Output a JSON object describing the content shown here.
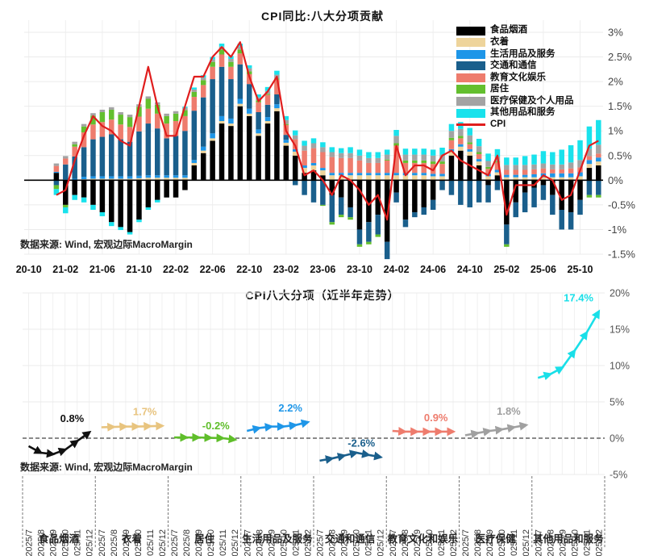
{
  "accent_colors": {
    "cpi_line": "#e01d1d",
    "grid": "#ebebeb",
    "zero_line": "#000000",
    "axis_text": "#444444"
  },
  "chart_data": [
    {
      "type": "bar",
      "subtype": "stacked-bar-with-line",
      "title": "CPI同比:八大分项贡献",
      "source": "数据来源: Wind, 宏观边际MacroMargin",
      "ylim": [
        -1.5,
        3
      ],
      "y_tick_values": [
        3,
        2.5,
        2,
        1.5,
        1,
        0.5,
        0,
        -0.5,
        -1,
        -1.5
      ],
      "y_tick_labels": [
        "3%",
        "2.5%",
        "2%",
        "1.5%",
        "1%",
        "0.5%",
        "0%",
        "-0.5%",
        "-1%",
        "-1.5%"
      ],
      "x_tick_labels": [
        "20-10",
        "21-02",
        "21-06",
        "21-10",
        "22-02",
        "22-06",
        "22-10",
        "23-02",
        "23-06",
        "23-10",
        "24-02",
        "24-06",
        "24-10",
        "25-02",
        "25-06",
        "25-10"
      ],
      "x_tick_month_offsets": [
        -3,
        1,
        5,
        9,
        13,
        17,
        21,
        25,
        29,
        33,
        37,
        41,
        45,
        49,
        53,
        57
      ],
      "months": [
        "21-01",
        "21-02",
        "21-03",
        "21-04",
        "21-05",
        "21-06",
        "21-07",
        "21-08",
        "21-09",
        "21-10",
        "21-11",
        "21-12",
        "22-01",
        "22-02",
        "22-03",
        "22-04",
        "22-05",
        "22-06",
        "22-07",
        "22-08",
        "22-09",
        "22-10",
        "22-11",
        "22-12",
        "23-01",
        "23-02",
        "23-03",
        "23-04",
        "23-05",
        "23-06",
        "23-07",
        "23-08",
        "23-09",
        "23-10",
        "23-11",
        "23-12",
        "24-01",
        "24-02",
        "24-03",
        "24-04",
        "24-05",
        "24-06",
        "24-07",
        "24-08",
        "24-09",
        "24-10",
        "24-11",
        "24-12",
        "25-01",
        "25-02",
        "25-03",
        "25-04",
        "25-05",
        "25-06",
        "25-07",
        "25-08",
        "25-09",
        "25-10",
        "25-11",
        "25-12"
      ],
      "series": [
        {
          "name": "食品烟酒",
          "color": "#000000",
          "values": [
            0.15,
            -0.5,
            -0.3,
            -0.35,
            -0.5,
            -0.65,
            -0.85,
            -0.95,
            -1.05,
            -0.8,
            -0.55,
            -0.4,
            -0.35,
            -0.35,
            -0.2,
            0.3,
            0.55,
            0.8,
            1.15,
            1.1,
            1.5,
            1.3,
            0.9,
            1.15,
            1.4,
            0.7,
            0.5,
            0.15,
            0.2,
            0.1,
            -0.3,
            -0.35,
            -0.55,
            -1.0,
            -0.85,
            -0.7,
            -1.25,
            -0.25,
            -0.8,
            -0.65,
            -0.55,
            -0.4,
            0.0,
            0.5,
            0.6,
            0.5,
            0.3,
            -0.1,
            0.1,
            -0.9,
            -0.45,
            -0.25,
            -0.15,
            -0.1,
            -0.3,
            -0.6,
            -0.65,
            -0.4,
            0.25,
            0.3
          ]
        },
        {
          "name": "衣着",
          "color": "#eed49b",
          "values": [
            0,
            0,
            0,
            0.02,
            0.03,
            0.03,
            0.03,
            0.03,
            0.03,
            0.04,
            0.05,
            0.05,
            0.05,
            0.05,
            0.05,
            0.05,
            0.05,
            0.05,
            0.05,
            0.05,
            0.05,
            0.05,
            0.05,
            0.05,
            0.06,
            0.06,
            0.08,
            0.1,
            0.1,
            0.1,
            0.1,
            0.1,
            0.1,
            0.1,
            0.1,
            0.1,
            0.1,
            0.1,
            0.1,
            0.1,
            0.1,
            0.08,
            0.08,
            0.08,
            0.08,
            0.08,
            0.08,
            0.08,
            0.06,
            0.06,
            0.06,
            0.06,
            0.06,
            0.06,
            0.06,
            0.06,
            0.06,
            0.08,
            0.08,
            0.08
          ]
        },
        {
          "name": "生活用品及服务",
          "color": "#1e96e8",
          "values": [
            0.02,
            0.02,
            0.03,
            0.05,
            0.05,
            0.05,
            0.05,
            0.05,
            0.05,
            0.05,
            0.05,
            0.05,
            0.05,
            0.05,
            0.05,
            0.06,
            0.08,
            0.1,
            0.1,
            0.1,
            0.1,
            0.1,
            0.08,
            0.08,
            0.08,
            0.06,
            0.05,
            0.05,
            0.05,
            0.05,
            0.05,
            0.05,
            0.05,
            0.05,
            0.05,
            0.05,
            0.05,
            0.05,
            0.05,
            0.05,
            0.05,
            0.05,
            0.05,
            0.05,
            0.05,
            0.05,
            0.05,
            0.05,
            0.05,
            0.05,
            0.05,
            0.05,
            0.06,
            0.08,
            0.08,
            0.08,
            0.08,
            0.08,
            0.08,
            0.08
          ]
        },
        {
          "name": "交通和通信",
          "color": "#1a5f8c",
          "values": [
            -0.1,
            0.3,
            0.45,
            0.6,
            0.75,
            0.8,
            0.85,
            0.75,
            0.7,
            0.9,
            1.05,
            0.95,
            0.75,
            0.8,
            0.9,
            1.0,
            1.0,
            1.1,
            1.0,
            0.8,
            0.7,
            0.5,
            0.35,
            0.25,
            0.2,
            0.1,
            -0.1,
            -0.3,
            -0.45,
            -0.5,
            -0.55,
            -0.35,
            -0.2,
            -0.3,
            -0.4,
            -0.4,
            -0.35,
            -0.2,
            -0.15,
            -0.1,
            -0.15,
            -0.2,
            -0.2,
            -0.3,
            -0.5,
            -0.55,
            -0.45,
            -0.35,
            -0.2,
            -0.4,
            -0.3,
            -0.4,
            -0.4,
            -0.3,
            -0.4,
            -0.4,
            -0.35,
            -0.3,
            -0.3,
            -0.3
          ]
        },
        {
          "name": "教育文化娱乐",
          "color": "#ee7c6d",
          "values": [
            0.12,
            0.12,
            0.2,
            0.3,
            0.3,
            0.3,
            0.3,
            0.3,
            0.3,
            0.3,
            0.3,
            0.3,
            0.3,
            0.3,
            0.3,
            0.28,
            0.25,
            0.25,
            0.25,
            0.25,
            0.22,
            0.2,
            0.2,
            0.2,
            0.3,
            0.2,
            0.2,
            0.3,
            0.3,
            0.32,
            0.32,
            0.3,
            0.3,
            0.25,
            0.2,
            0.2,
            0.25,
            0.55,
            0.2,
            0.2,
            0.2,
            0.2,
            0.2,
            0.18,
            0.12,
            0.1,
            0.1,
            0.1,
            0.15,
            0.1,
            0.1,
            0.1,
            0.1,
            0.1,
            0.08,
            0.08,
            0.1,
            0.1,
            0.08,
            0.08
          ]
        },
        {
          "name": "居住",
          "color": "#63bf2e",
          "values": [
            -0.08,
            -0.05,
            0.05,
            0.12,
            0.18,
            0.2,
            0.2,
            0.2,
            0.2,
            0.2,
            0.2,
            0.18,
            0.15,
            0.15,
            0.12,
            0.1,
            0.1,
            0.1,
            0.1,
            0.1,
            0.08,
            0.06,
            0.04,
            0.02,
            0.02,
            0.02,
            0,
            0,
            0,
            -0.02,
            -0.05,
            -0.05,
            -0.05,
            -0.05,
            -0.05,
            -0.05,
            0.02,
            0.05,
            0.05,
            0.05,
            0.05,
            0.05,
            0.05,
            0.05,
            0.05,
            0.04,
            0.04,
            0.04,
            0.02,
            -0.05,
            0,
            0,
            0,
            0,
            0,
            0,
            0,
            0,
            -0.05,
            -0.05
          ]
        },
        {
          "name": "医疗保健及个人用品",
          "color": "#a3a3a3",
          "values": [
            0.05,
            0.05,
            0.05,
            0.05,
            0.05,
            0.05,
            0.05,
            0.05,
            0.05,
            0.05,
            0.05,
            0.05,
            0.05,
            0.05,
            0.05,
            0.05,
            0.05,
            0.05,
            0.06,
            0.06,
            0.06,
            0.06,
            0.06,
            0.06,
            0.08,
            0.08,
            0.08,
            0.1,
            0.1,
            0.1,
            0.1,
            0.1,
            0.1,
            0.1,
            0.1,
            0.1,
            0.1,
            0.15,
            0.12,
            0.12,
            0.12,
            0.12,
            0.14,
            0.14,
            0.14,
            0.14,
            0.12,
            0.12,
            0.1,
            0.1,
            0.1,
            0.1,
            0.1,
            0.1,
            0.1,
            0.1,
            0.12,
            0.15,
            0.15,
            0.18
          ]
        },
        {
          "name": "其他用品和服务",
          "color": "#19e2ec",
          "values": [
            -0.12,
            -0.12,
            -0.1,
            -0.1,
            -0.1,
            -0.08,
            -0.08,
            -0.06,
            -0.05,
            -0.05,
            -0.05,
            -0.05,
            0,
            0,
            0.02,
            0.04,
            0.05,
            0.05,
            0.06,
            0.06,
            0.06,
            0.06,
            0.06,
            0.08,
            0.08,
            0.08,
            0.1,
            0.1,
            0.1,
            0.1,
            0.1,
            0.1,
            0.12,
            0.12,
            0.12,
            0.12,
            0.1,
            0.12,
            0.12,
            0.12,
            0.12,
            0.12,
            0.14,
            0.14,
            0.14,
            0.15,
            0.15,
            0.15,
            0.15,
            0.15,
            0.15,
            0.18,
            0.2,
            0.25,
            0.25,
            0.3,
            0.35,
            0.4,
            0.45,
            0.5
          ]
        }
      ],
      "line": {
        "name": "CPI",
        "color": "#e01d1d",
        "values": [
          -0.3,
          -0.2,
          0.4,
          0.9,
          1.3,
          1.1,
          1.0,
          0.8,
          0.7,
          1.5,
          2.3,
          1.5,
          0.9,
          0.9,
          1.5,
          2.1,
          2.1,
          2.5,
          2.7,
          2.5,
          2.8,
          2.1,
          1.6,
          1.8,
          2.1,
          1.0,
          0.7,
          0.1,
          0.2,
          0.0,
          -0.3,
          0.1,
          0.0,
          -0.2,
          -0.5,
          -0.3,
          -0.8,
          0.7,
          0.1,
          0.3,
          0.3,
          0.2,
          0.5,
          0.6,
          0.4,
          0.3,
          0.2,
          0.1,
          0.5,
          -0.7,
          -0.1,
          -0.1,
          -0.1,
          0.1,
          0.0,
          -0.4,
          -0.3,
          0.2,
          0.7,
          0.8
        ]
      },
      "legend_position": "top-right",
      "grid": true
    },
    {
      "type": "line",
      "subtype": "small-multiples-arrow-lines",
      "title": "CPI八大分项（近半年走势）",
      "source": "数据来源: Wind, 宏观边际MacroMargin",
      "ylim": [
        -5,
        20
      ],
      "y_tick_values": [
        20,
        15,
        10,
        5,
        0,
        -5
      ],
      "y_tick_labels": [
        "20%",
        "15%",
        "10%",
        "5%",
        "0%",
        "-5%"
      ],
      "x_labels": [
        "2025/7",
        "2025/8",
        "2025/9",
        "2025/10",
        "2025/11",
        "2025/12"
      ],
      "panels": [
        {
          "name": "食品烟酒",
          "color": "#111111",
          "label_color": "#111111",
          "end_label": "0.8%",
          "values": [
            -1.1,
            -2.0,
            -2.2,
            -1.6,
            -0.4,
            0.8
          ]
        },
        {
          "name": "衣着",
          "color": "#e8c47f",
          "label_color": "#e8c47f",
          "end_label": "1.7%",
          "values": [
            1.5,
            1.55,
            1.6,
            1.6,
            1.65,
            1.7
          ]
        },
        {
          "name": "居住",
          "color": "#5fbe2a",
          "label_color": "#5fbe2a",
          "end_label": "-0.2%",
          "values": [
            0.1,
            0.1,
            0.1,
            0.05,
            0.0,
            -0.2
          ]
        },
        {
          "name": "生活用品及服务",
          "color": "#1e96e8",
          "label_color": "#1e96e8",
          "end_label": "2.2%",
          "values": [
            1.0,
            1.4,
            1.6,
            1.6,
            1.8,
            2.2
          ]
        },
        {
          "name": "交通和通信",
          "color": "#1a5f8c",
          "label_color": "#1a5f8c",
          "end_label": "-2.6%",
          "values": [
            -3.1,
            -2.8,
            -2.4,
            -2.0,
            -2.3,
            -2.6
          ]
        },
        {
          "name": "教育文化和娱乐",
          "color": "#ee7c6d",
          "label_color": "#ee7c6d",
          "end_label": "0.9%",
          "values": [
            1.0,
            0.9,
            0.9,
            0.9,
            0.9,
            0.9
          ]
        },
        {
          "name": "医疗保健",
          "color": "#a0a0a0",
          "label_color": "#a0a0a0",
          "end_label": "1.8%",
          "values": [
            0.4,
            0.7,
            1.0,
            1.2,
            1.5,
            1.8
          ]
        },
        {
          "name": "其他用品和服务",
          "color": "#19dfe8",
          "label_color": "#19dfe8",
          "end_label": "17.4%",
          "values": [
            8.3,
            8.8,
            9.7,
            12.0,
            14.5,
            17.4
          ]
        }
      ],
      "grid": true
    }
  ],
  "legend": {
    "items": [
      {
        "label": "食品烟酒",
        "color": "#000000",
        "type": "box"
      },
      {
        "label": "衣着",
        "color": "#eed49b",
        "type": "box"
      },
      {
        "label": "生活用品及服务",
        "color": "#1e96e8",
        "type": "box"
      },
      {
        "label": "交通和通信",
        "color": "#1a5f8c",
        "type": "box"
      },
      {
        "label": "教育文化娱乐",
        "color": "#ee7c6d",
        "type": "box"
      },
      {
        "label": "居住",
        "color": "#63bf2e",
        "type": "box"
      },
      {
        "label": "医疗保健及个人用品",
        "color": "#a3a3a3",
        "type": "box"
      },
      {
        "label": "其他用品和服务",
        "color": "#19e2ec",
        "type": "box"
      },
      {
        "label": "CPI",
        "color": "#e01d1d",
        "type": "line"
      }
    ]
  }
}
